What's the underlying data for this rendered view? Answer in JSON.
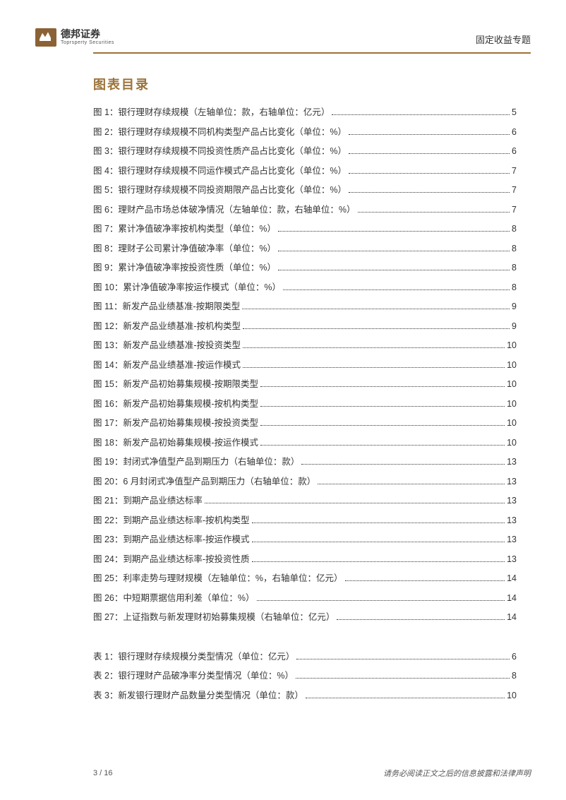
{
  "header": {
    "company_name": "德邦证券",
    "company_sub": "Toprsperty Securities",
    "doc_type": "固定收益专题"
  },
  "toc": {
    "title": "图表目录",
    "figures": [
      {
        "label": "图 1：",
        "text": "银行理财存续规模（左轴单位：款，右轴单位：亿元）",
        "page": "5"
      },
      {
        "label": "图 2：",
        "text": "银行理财存续规模不同机构类型产品占比变化（单位：%）",
        "page": "6"
      },
      {
        "label": "图 3：",
        "text": "银行理财存续规模不同投资性质产品占比变化（单位：%）",
        "page": "6"
      },
      {
        "label": "图 4：",
        "text": "银行理财存续规模不同运作模式产品占比变化（单位：%）",
        "page": "7"
      },
      {
        "label": "图 5：",
        "text": "银行理财存续规模不同投资期限产品占比变化（单位：%）",
        "page": "7"
      },
      {
        "label": "图 6：",
        "text": "理财产品市场总体破净情况（左轴单位：款，右轴单位：%）",
        "page": "7"
      },
      {
        "label": "图 7：",
        "text": "累计净值破净率按机构类型（单位：%）",
        "page": "8"
      },
      {
        "label": "图 8：",
        "text": "理财子公司累计净值破净率（单位：%）",
        "page": "8"
      },
      {
        "label": "图 9：",
        "text": "累计净值破净率按投资性质（单位：%）",
        "page": "8"
      },
      {
        "label": "图 10：",
        "text": "累计净值破净率按运作模式（单位：%）",
        "page": "8"
      },
      {
        "label": "图 11：",
        "text": "新发产品业绩基准-按期限类型",
        "page": "9"
      },
      {
        "label": "图 12：",
        "text": "新发产品业绩基准-按机构类型",
        "page": "9"
      },
      {
        "label": "图 13：",
        "text": "新发产品业绩基准-按投资类型",
        "page": "10"
      },
      {
        "label": "图 14：",
        "text": "新发产品业绩基准-按运作模式",
        "page": "10"
      },
      {
        "label": "图 15：",
        "text": "新发产品初始募集规模-按期限类型",
        "page": "10"
      },
      {
        "label": "图 16：",
        "text": "新发产品初始募集规模-按机构类型",
        "page": "10"
      },
      {
        "label": "图 17：",
        "text": "新发产品初始募集规模-按投资类型",
        "page": "10"
      },
      {
        "label": "图 18：",
        "text": "新发产品初始募集规模-按运作模式",
        "page": "10"
      },
      {
        "label": "图 19：",
        "text": "封闭式净值型产品到期压力（右轴单位：款）",
        "page": "13"
      },
      {
        "label": "图 20：",
        "text": "6 月封闭式净值型产品到期压力（右轴单位：款）",
        "page": "13"
      },
      {
        "label": "图 21：",
        "text": "到期产品业绩达标率",
        "page": "13"
      },
      {
        "label": "图 22：",
        "text": "到期产品业绩达标率-按机构类型",
        "page": "13"
      },
      {
        "label": "图 23：",
        "text": "到期产品业绩达标率-按运作模式",
        "page": "13"
      },
      {
        "label": "图 24：",
        "text": "到期产品业绩达标率-按投资性质",
        "page": "13"
      },
      {
        "label": "图 25：",
        "text": "利率走势与理财规模（左轴单位：%，右轴单位：亿元）",
        "page": "14"
      },
      {
        "label": "图 26：",
        "text": "中短期票据信用利差（单位：%）",
        "page": "14"
      },
      {
        "label": "图 27：",
        "text": "上证指数与新发理财初始募集规模（右轴单位：亿元）",
        "page": "14"
      }
    ],
    "tables": [
      {
        "label": "表 1：",
        "text": "银行理财存续规模分类型情况（单位：亿元）",
        "page": "6"
      },
      {
        "label": "表 2：",
        "text": "银行理财产品破净率分类型情况（单位：%）",
        "page": "8"
      },
      {
        "label": "表 3：",
        "text": "新发银行理财产品数量分类型情况（单位：款）",
        "page": "10"
      }
    ]
  },
  "footer": {
    "page_info": "3 / 16",
    "disclaimer": "请务必阅读正文之后的信息披露和法律声明"
  }
}
